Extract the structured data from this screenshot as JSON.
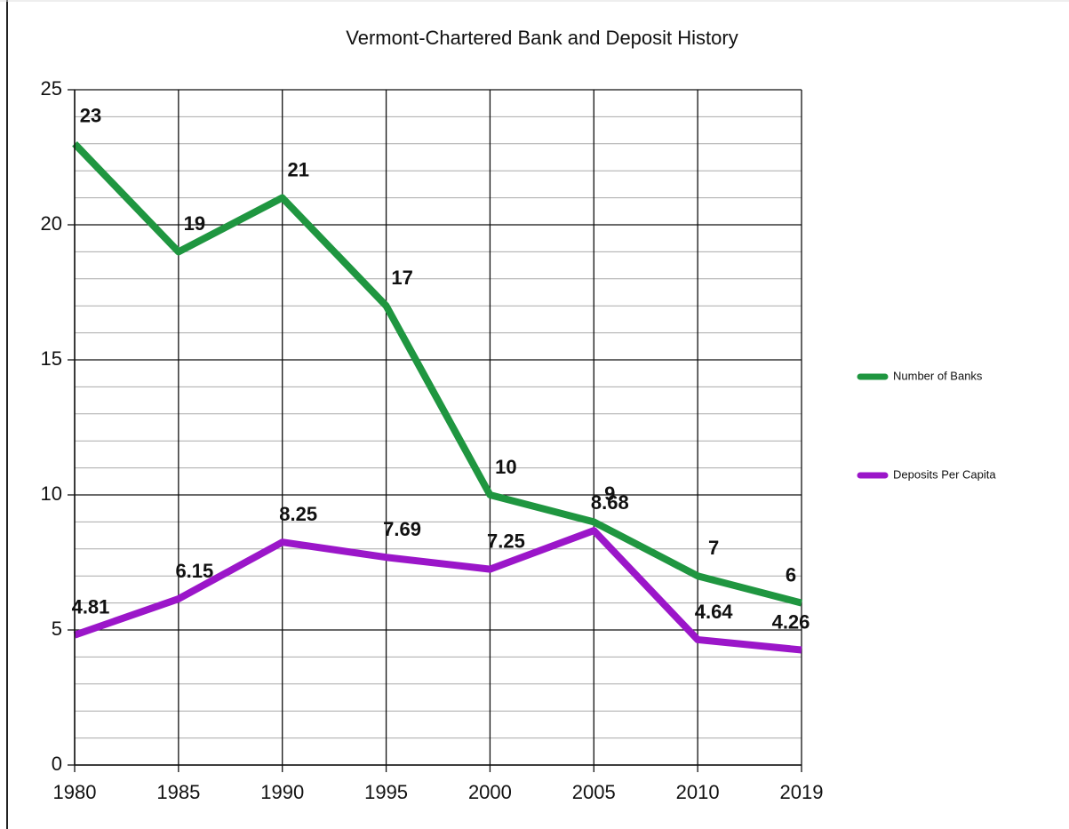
{
  "chart_data": {
    "type": "line",
    "title": "Vermont-Chartered Bank and Deposit History",
    "categories": [
      "1980",
      "1985",
      "1990",
      "1995",
      "2000",
      "2005",
      "2010",
      "2019"
    ],
    "series": [
      {
        "name": "Number of Banks",
        "color": "#1f9640",
        "values": [
          23,
          19,
          21,
          17,
          10,
          9,
          7,
          6
        ]
      },
      {
        "name": "Deposits Per Capita",
        "color": "#9b16c9",
        "values": [
          4.81,
          6.15,
          8.25,
          7.69,
          7.25,
          8.68,
          4.64,
          4.26
        ]
      }
    ],
    "ylim": [
      0,
      25
    ],
    "yticks": [
      0,
      5,
      10,
      15,
      20,
      25
    ],
    "yminorticks": [
      1,
      2,
      3,
      4,
      6,
      7,
      8,
      9,
      11,
      12,
      13,
      14,
      16,
      17,
      18,
      19,
      21,
      22,
      23,
      24
    ],
    "grid": true,
    "legend": "right"
  }
}
